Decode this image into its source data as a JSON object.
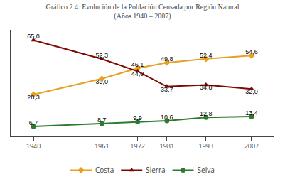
{
  "chart_data": {
    "type": "line",
    "title": "Gráfico 2.4: Evolución de la Población Censada por Región Natural",
    "subtitle": "(Años 1940 – 2007)",
    "x": [
      1940,
      1961,
      1972,
      1981,
      1993,
      2007
    ],
    "series": [
      {
        "name": "Costa",
        "color": "#E8A020",
        "marker": "diamond",
        "values": [
          28.3,
          39.0,
          46.1,
          49.8,
          52.4,
          54.6
        ],
        "value_labels": [
          "28,3",
          "39,0",
          "46,1",
          "49,8",
          "52,4",
          "54,6"
        ]
      },
      {
        "name": "Sierra",
        "color": "#7B0A00",
        "marker": "triangle-up",
        "values": [
          65.0,
          52.3,
          44.0,
          33.7,
          34.8,
          32.0
        ],
        "value_labels": [
          "65,0",
          "52,3",
          "44,0",
          "33,7",
          "34,8",
          "32,0"
        ]
      },
      {
        "name": "Selva",
        "color": "#2E7B2E",
        "marker": "circle",
        "values": [
          6.7,
          8.7,
          9.9,
          10.6,
          12.8,
          13.4
        ],
        "value_labels": [
          "6,7",
          "8,7",
          "9,9",
          "10,6",
          "12,8",
          "13,4"
        ]
      }
    ],
    "xlim": [
      1933,
      2014
    ],
    "xticks": [
      1940,
      1961,
      1972,
      1981,
      1993,
      2007
    ],
    "ylim": [
      0,
      72
    ],
    "tick_labels": "x",
    "grid": false,
    "legend": "bottom",
    "data_labels": true
  }
}
